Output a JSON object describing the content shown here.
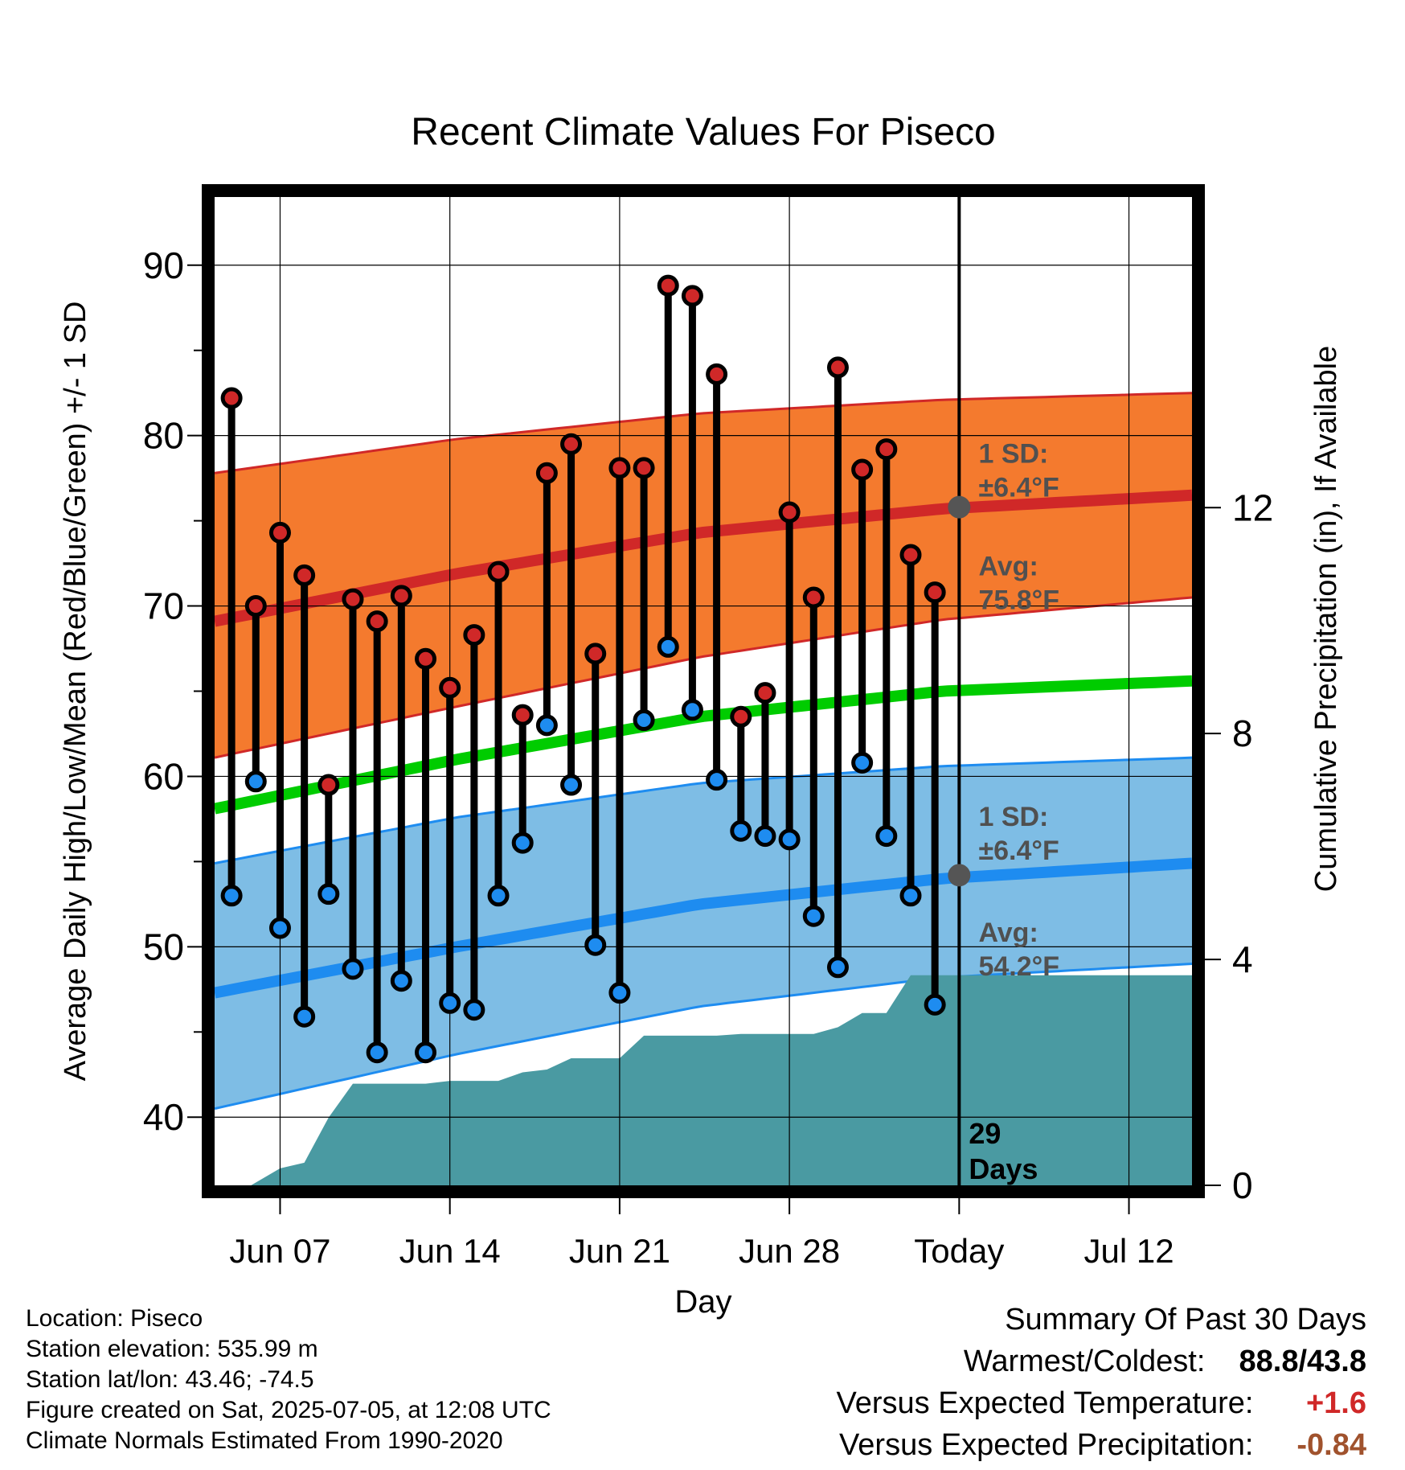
{
  "chart_data": {
    "type": "line",
    "title": "Recent Climate Values For Piseco",
    "xlabel": "Day",
    "ylabel_left": "Average Daily High/Low/Mean (Red/Blue/Green) +/- 1 SD",
    "ylabel_right": "Cumulative Precipitation (in), If Available",
    "x_tick_labels": [
      "Jun 07",
      "Jun 14",
      "Jun 21",
      "Jun 28",
      "Today",
      "Jul 12"
    ],
    "x_tick_days": [
      7,
      14,
      21,
      28,
      35,
      42
    ],
    "xlim": [
      4.3,
      44.6
    ],
    "ylim_left": [
      36,
      94
    ],
    "y_ticks_left": [
      40,
      50,
      60,
      70,
      80,
      90
    ],
    "ylim_right": [
      0,
      17.5
    ],
    "y_ticks_right": [
      0,
      4,
      8,
      12
    ],
    "grid": true,
    "today_day": 35,
    "days_label": "29\nDays",
    "daily_obs": {
      "day": [
        5,
        6,
        7,
        8,
        9,
        10,
        11,
        12,
        13,
        14,
        15,
        16,
        17,
        18,
        19,
        20,
        21,
        22,
        23,
        24,
        25,
        26,
        27,
        28,
        29,
        30,
        31,
        32,
        33,
        34
      ],
      "high": [
        82.2,
        70.0,
        74.3,
        71.8,
        59.5,
        70.4,
        69.1,
        70.6,
        66.9,
        65.2,
        68.3,
        72.0,
        63.6,
        77.8,
        79.5,
        67.2,
        78.1,
        78.1,
        88.8,
        88.2,
        83.6,
        63.5,
        64.9,
        75.5,
        70.5,
        84.0,
        78.0,
        79.2,
        73.0,
        70.8
      ],
      "low": [
        53.0,
        59.7,
        51.1,
        45.9,
        53.1,
        48.7,
        43.8,
        48.0,
        43.8,
        46.7,
        46.3,
        53.0,
        56.1,
        63.0,
        59.5,
        50.1,
        47.3,
        63.3,
        67.6,
        63.9,
        59.8,
        56.8,
        56.5,
        56.3,
        51.8,
        48.8,
        60.8,
        56.5,
        53.0,
        46.6
      ]
    },
    "normals": {
      "day": [
        4.3,
        14.3,
        24.3,
        34.3,
        44.6
      ],
      "high_mean": [
        69.1,
        71.9,
        74.3,
        75.7,
        76.5
      ],
      "high_upper": [
        77.8,
        79.8,
        81.3,
        82.1,
        82.5
      ],
      "high_lower": [
        61.1,
        64.1,
        67.0,
        69.2,
        70.5
      ],
      "mean": [
        58.1,
        61.0,
        63.5,
        65.0,
        65.6
      ],
      "low_mean": [
        47.3,
        50.0,
        52.5,
        54.0,
        54.9
      ],
      "low_upper": [
        54.9,
        57.6,
        59.6,
        60.6,
        61.1
      ],
      "low_lower": [
        40.5,
        43.7,
        46.5,
        48.2,
        49.0
      ]
    },
    "precip_cumulative": {
      "day": [
        4.3,
        5.8,
        7,
        8,
        9,
        10,
        11,
        12,
        13,
        14,
        15,
        16,
        17,
        18,
        19,
        20,
        21,
        22,
        23,
        24,
        25,
        26,
        27,
        28,
        29,
        30,
        31,
        32,
        33,
        44.6
      ],
      "value": [
        0,
        0,
        0.3,
        0.4,
        1.2,
        1.8,
        1.8,
        1.8,
        1.8,
        1.85,
        1.85,
        1.85,
        2.0,
        2.05,
        2.25,
        2.25,
        2.25,
        2.65,
        2.65,
        2.65,
        2.65,
        2.68,
        2.68,
        2.68,
        2.68,
        2.8,
        3.05,
        3.05,
        3.72,
        3.72
      ]
    },
    "annotations": [
      {
        "text_line1": "1 SD:",
        "text_line2": "±6.4°F",
        "day": 35.8,
        "y": 78.4
      },
      {
        "text_line1": "Avg:",
        "text_line2": "75.8°F",
        "day": 35.8,
        "y": 71.8
      },
      {
        "text_line1": "1 SD:",
        "text_line2": "±6.4°F",
        "day": 35.8,
        "y": 57.1
      },
      {
        "text_line1": "Avg:",
        "text_line2": "54.2°F",
        "day": 35.8,
        "y": 50.3
      }
    ],
    "today_markers": [
      75.8,
      54.2
    ],
    "colors": {
      "high_band": "#f47a2e",
      "high_line": "#d02828",
      "low_band": "#7ebde5",
      "low_line": "#1e8cf0",
      "mean_line": "#00cc00",
      "precip": "#4a9aa2",
      "high_dot": "#d02828",
      "low_dot": "#1e8cf0",
      "annotation": "#505050"
    }
  },
  "info": {
    "location": "Location: Piseco",
    "elevation": "Station elevation: 535.99 m",
    "latlon": "Station lat/lon: 43.46; -74.5",
    "created": "Figure created on Sat, 2025-07-05, at 12:08 UTC",
    "normals": "Climate Normals Estimated From 1990-2020"
  },
  "summary": {
    "title": "Summary Of Past 30 Days",
    "warm_cold_label": "Warmest/Coldest:",
    "warm_cold_value": "88.8/43.8",
    "temp_label": "Versus Expected Temperature:",
    "temp_value": "+1.6",
    "temp_color": "#d02828",
    "precip_label": "Versus Expected Precipitation:",
    "precip_value": "-0.84",
    "precip_color": "#a0522d"
  }
}
